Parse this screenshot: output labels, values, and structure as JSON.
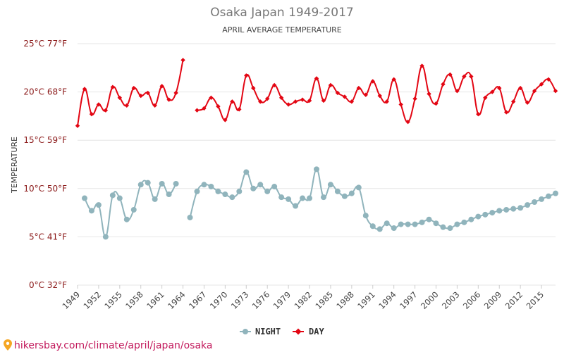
{
  "chart_data": {
    "type": "line",
    "title": "Osaka Japan 1949-2017",
    "subtitle": "APRIL AVERAGE TEMPERATURE",
    "ylabel": "TEMPERATURE",
    "xlabel": "",
    "ylim": [
      0,
      25
    ],
    "xlim": [
      1949,
      2017
    ],
    "y_ticks": [
      {
        "value": 0,
        "label": "0°C 32°F"
      },
      {
        "value": 5,
        "label": "5°C 41°F"
      },
      {
        "value": 10,
        "label": "10°C 50°F"
      },
      {
        "value": 15,
        "label": "15°C 59°F"
      },
      {
        "value": 20,
        "label": "20°C 68°F"
      },
      {
        "value": 25,
        "label": "25°C 77°F"
      }
    ],
    "x_ticks": [
      1949,
      1952,
      1955,
      1958,
      1961,
      1964,
      1967,
      1970,
      1973,
      1976,
      1979,
      1982,
      1985,
      1988,
      1991,
      1994,
      1997,
      2000,
      2003,
      2006,
      2009,
      2012,
      2015
    ],
    "grid": true,
    "legend_position": "bottom-center",
    "x": [
      1949,
      1950,
      1951,
      1952,
      1953,
      1954,
      1955,
      1956,
      1957,
      1958,
      1959,
      1960,
      1961,
      1962,
      1963,
      1964,
      1965,
      1966,
      1967,
      1968,
      1969,
      1970,
      1971,
      1972,
      1973,
      1974,
      1975,
      1976,
      1977,
      1978,
      1979,
      1980,
      1981,
      1982,
      1983,
      1984,
      1985,
      1986,
      1987,
      1988,
      1989,
      1990,
      1991,
      1992,
      1993,
      1994,
      1995,
      1996,
      1997,
      1998,
      1999,
      2000,
      2001,
      2002,
      2003,
      2004,
      2005,
      2006,
      2007,
      2008,
      2009,
      2010,
      2011,
      2012,
      2013,
      2014,
      2015,
      2016,
      2017
    ],
    "series": [
      {
        "name": "NIGHT",
        "color": "#90b4bc",
        "values": [
          null,
          9.0,
          7.7,
          8.3,
          5.0,
          9.3,
          9.0,
          6.8,
          7.8,
          10.4,
          10.6,
          8.9,
          10.5,
          9.4,
          10.5,
          null,
          7.0,
          9.7,
          10.4,
          10.2,
          9.7,
          9.4,
          9.1,
          9.7,
          11.7,
          10.0,
          10.4,
          9.7,
          10.2,
          9.1,
          8.9,
          8.2,
          9.0,
          9.0,
          12.0,
          9.1,
          10.4,
          9.7,
          9.2,
          9.5,
          10.1,
          7.2,
          6.1,
          5.8,
          6.4,
          5.9,
          6.3,
          6.3,
          6.3,
          6.5,
          6.8,
          6.4,
          6.0,
          5.9,
          6.3,
          6.5,
          6.8,
          7.1,
          7.3,
          7.5,
          7.7,
          7.8,
          7.9,
          8.0,
          8.3,
          8.6,
          8.9,
          9.2,
          9.5
        ]
      },
      {
        "name": "DAY",
        "color": "#e30613",
        "values": [
          16.5,
          20.3,
          17.7,
          18.7,
          18.1,
          20.5,
          19.4,
          18.6,
          20.4,
          19.6,
          19.9,
          18.6,
          20.6,
          19.2,
          19.9,
          23.3,
          null,
          18.1,
          18.3,
          19.4,
          18.5,
          17.1,
          19.0,
          18.2,
          21.7,
          20.4,
          19.0,
          19.3,
          20.7,
          19.4,
          18.7,
          19.0,
          19.2,
          19.1,
          21.4,
          19.1,
          20.7,
          19.9,
          19.5,
          19.0,
          20.4,
          19.7,
          21.1,
          19.6,
          19.0,
          21.3,
          18.7,
          16.9,
          19.3,
          22.7,
          19.8,
          18.8,
          20.8,
          21.8,
          20.1,
          21.6,
          21.6,
          17.7,
          19.4,
          20.0,
          20.4,
          17.9,
          19.0,
          20.4,
          18.9,
          20.1,
          20.8,
          21.3,
          20.1
        ]
      }
    ]
  },
  "legend": {
    "items": [
      {
        "label": "NIGHT",
        "color": "#90b4bc"
      },
      {
        "label": "DAY",
        "color": "#e30613"
      }
    ]
  },
  "footer": {
    "source_text": "hikersbay.com/climate/april/japan/osaka",
    "pin_icon": "map-pin-icon"
  }
}
